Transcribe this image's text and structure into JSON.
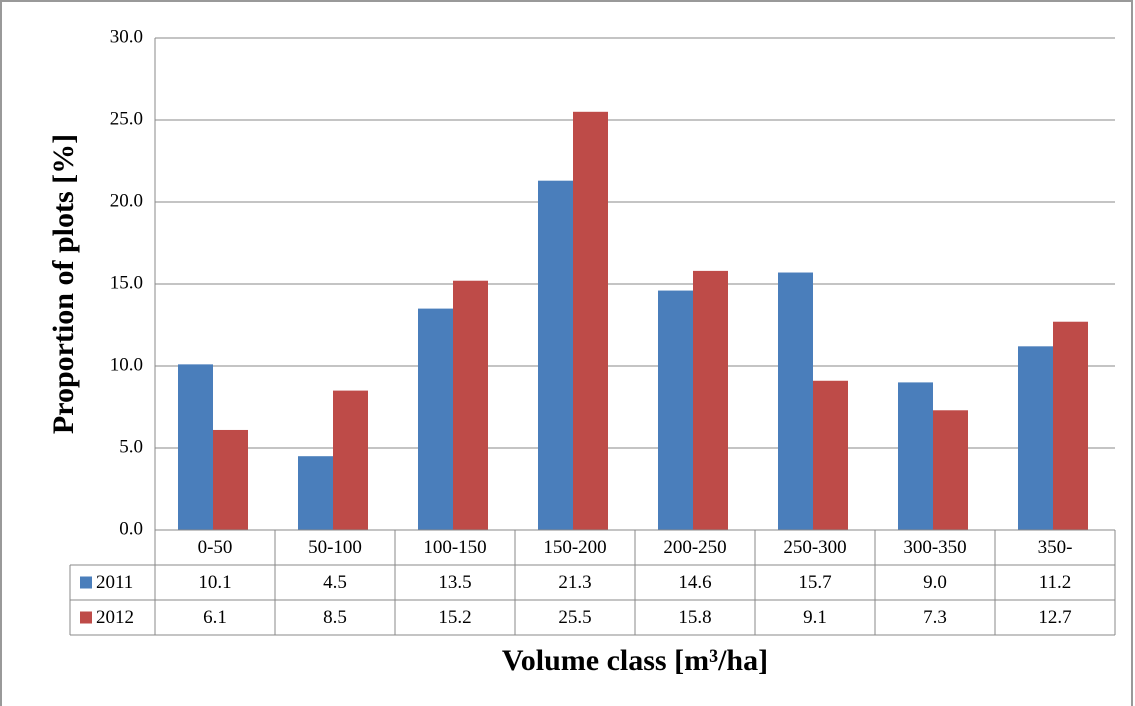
{
  "chart_data": {
    "type": "bar",
    "x_label": "Volume class [m³/ha]",
    "y_label": "Proportion of plots [%]",
    "categories": [
      "0-50",
      "50-100",
      "100-150",
      "150-200",
      "200-250",
      "250-300",
      "300-350",
      "350-"
    ],
    "series": [
      {
        "name": "2011",
        "color": "#4a7ebb",
        "values": [
          10.1,
          4.5,
          13.5,
          21.3,
          14.6,
          15.7,
          9.0,
          11.2
        ],
        "value_labels": [
          "10.1",
          "4.5",
          "13.5",
          "21.3",
          "14.6",
          "15.7",
          "9.0",
          "11.2"
        ]
      },
      {
        "name": "2012",
        "color": "#be4b48",
        "values": [
          6.1,
          8.5,
          15.2,
          25.5,
          15.8,
          9.1,
          7.3,
          12.7
        ],
        "value_labels": [
          "6.1",
          "8.5",
          "15.2",
          "25.5",
          "15.8",
          "9.1",
          "7.3",
          "12.7"
        ]
      }
    ],
    "ylim": [
      0,
      30
    ],
    "yticks": [
      {
        "value": 0,
        "label": "0.0"
      },
      {
        "value": 5,
        "label": "5.0"
      },
      {
        "value": 10,
        "label": "10.0"
      },
      {
        "value": 15,
        "label": "15.0"
      },
      {
        "value": 20,
        "label": "20.0"
      },
      {
        "value": 25,
        "label": "25.0"
      },
      {
        "value": 30,
        "label": "30.0"
      }
    ],
    "grid": true
  }
}
